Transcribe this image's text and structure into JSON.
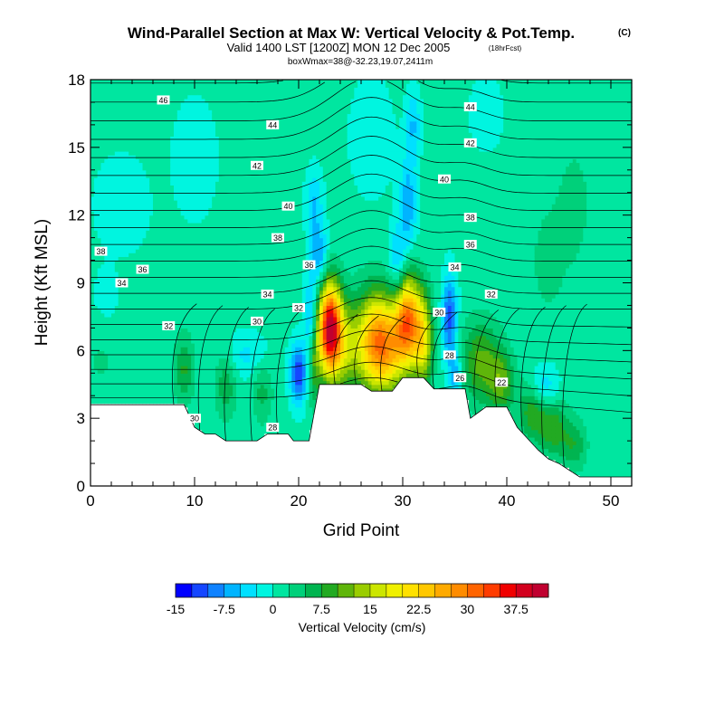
{
  "chart_data": {
    "type": "contour",
    "title": "Wind-Parallel Section at Max W: Vertical Velocity & Pot.Temp.",
    "title_mark": "(C)",
    "subtitle": "Valid 1400 LST [1200Z] MON 12 Dec 2005",
    "subtitle_note": "(18hrFcst)",
    "subtitle2": "boxWmax=38@-32.23,19.07,2411m",
    "xlabel": "Grid Point",
    "ylabel": "Height (Kft MSL)",
    "xlim": [
      0,
      52
    ],
    "ylim": [
      0,
      18
    ],
    "xticks": [
      0,
      10,
      20,
      30,
      40,
      50
    ],
    "yticks": [
      0,
      3,
      6,
      9,
      12,
      15,
      18
    ],
    "terrain": [
      [
        0,
        3.6
      ],
      [
        3,
        3.6
      ],
      [
        5,
        3.6
      ],
      [
        7,
        3.6
      ],
      [
        9,
        3.6
      ],
      [
        10,
        2.6
      ],
      [
        11,
        2.3
      ],
      [
        12,
        2.3
      ],
      [
        13,
        2.0
      ],
      [
        14,
        2.0
      ],
      [
        15,
        2.0
      ],
      [
        16,
        2.0
      ],
      [
        17,
        2.3
      ],
      [
        18,
        2.3
      ],
      [
        19,
        2.3
      ],
      [
        19.5,
        2.0
      ],
      [
        20,
        2.0
      ],
      [
        21,
        2.0
      ],
      [
        22,
        4.5
      ],
      [
        26,
        4.5
      ],
      [
        27,
        4.2
      ],
      [
        29,
        4.2
      ],
      [
        30,
        4.8
      ],
      [
        32,
        4.8
      ],
      [
        33,
        4.3
      ],
      [
        36,
        4.3
      ],
      [
        36.5,
        3.0
      ],
      [
        38,
        3.5
      ],
      [
        40,
        3.5
      ],
      [
        41,
        2.6
      ],
      [
        42,
        2.1
      ],
      [
        43,
        1.6
      ],
      [
        44,
        1.2
      ],
      [
        45,
        1.0
      ],
      [
        46,
        0.7
      ],
      [
        47,
        0.4
      ],
      [
        48,
        0.4
      ],
      [
        52,
        0.4
      ]
    ],
    "colorbar": {
      "levels": [
        -15,
        -12.5,
        -10,
        -7.5,
        -5,
        -2.5,
        0,
        2.5,
        5,
        7.5,
        10,
        12.5,
        15,
        17.5,
        20,
        22.5,
        25,
        27.5,
        30,
        32.5,
        35,
        37.5,
        40,
        42.5
      ],
      "colors": [
        "#0000ff",
        "#1546ff",
        "#0f82ff",
        "#00b4ff",
        "#00e0ff",
        "#00f5e0",
        "#00e6a0",
        "#00d07a",
        "#00b450",
        "#22aa22",
        "#5fb50a",
        "#9acd00",
        "#cce600",
        "#f0f000",
        "#ffe100",
        "#ffc800",
        "#ffaa00",
        "#ff8c00",
        "#ff6400",
        "#ff3c00",
        "#f00000",
        "#d2001e",
        "#c00030"
      ],
      "tick_labels": [
        "-15",
        "-7.5",
        "0",
        "7.5",
        "15",
        "22.5",
        "30",
        "37.5"
      ],
      "label": "Vertical Velocity (cm/s)"
    },
    "theta_contour_labels": [
      {
        "value": "46",
        "x": 7,
        "y": 17.1
      },
      {
        "value": "44",
        "x": 17.5,
        "y": 16.0
      },
      {
        "value": "44",
        "x": 36.5,
        "y": 16.8
      },
      {
        "value": "42",
        "x": 16,
        "y": 14.2
      },
      {
        "value": "42",
        "x": 36.5,
        "y": 15.2
      },
      {
        "value": "40",
        "x": 19,
        "y": 12.4
      },
      {
        "value": "40",
        "x": 34,
        "y": 13.6
      },
      {
        "value": "38",
        "x": 1,
        "y": 10.4
      },
      {
        "value": "38",
        "x": 18,
        "y": 11.0
      },
      {
        "value": "38",
        "x": 36.5,
        "y": 11.9
      },
      {
        "value": "36",
        "x": 5,
        "y": 9.6
      },
      {
        "value": "36",
        "x": 21,
        "y": 9.8
      },
      {
        "value": "36",
        "x": 36.5,
        "y": 10.7
      },
      {
        "value": "34",
        "x": 3,
        "y": 9.0
      },
      {
        "value": "34",
        "x": 17,
        "y": 8.5
      },
      {
        "value": "34",
        "x": 35,
        "y": 9.7
      },
      {
        "value": "32",
        "x": 20,
        "y": 7.9
      },
      {
        "value": "32",
        "x": 7.5,
        "y": 7.1
      },
      {
        "value": "32",
        "x": 38.5,
        "y": 8.5
      },
      {
        "value": "30",
        "x": 16,
        "y": 7.3
      },
      {
        "value": "30",
        "x": 33.5,
        "y": 7.7
      },
      {
        "value": "30",
        "x": 10,
        "y": 3.0
      },
      {
        "value": "28",
        "x": 17.5,
        "y": 2.6
      },
      {
        "value": "28",
        "x": 34.5,
        "y": 5.8
      },
      {
        "value": "26",
        "x": 35.5,
        "y": 4.8
      },
      {
        "value": "22",
        "x": 39.5,
        "y": 4.6
      }
    ],
    "w_features": [
      {
        "x": 23,
        "y": 7.0,
        "sx": 1.1,
        "sy": 2.0,
        "w": 38
      },
      {
        "x": 24.5,
        "y": 6.2,
        "sx": 1.6,
        "sy": 2.0,
        "w": 12
      },
      {
        "x": 27.5,
        "y": 6.4,
        "sx": 1.8,
        "sy": 2.2,
        "w": 26
      },
      {
        "x": 30.5,
        "y": 7.3,
        "sx": 1.2,
        "sy": 2.0,
        "w": 28
      },
      {
        "x": 29,
        "y": 6.0,
        "sx": 1.5,
        "sy": 1.8,
        "w": 10
      },
      {
        "x": 32,
        "y": 6.5,
        "sx": 0.9,
        "sy": 2.0,
        "w": 16
      },
      {
        "x": 37.5,
        "y": 5.5,
        "sx": 1.8,
        "sy": 1.8,
        "w": 10
      },
      {
        "x": 39.5,
        "y": 4.6,
        "sx": 1.2,
        "sy": 1.4,
        "w": 9
      },
      {
        "x": 42.5,
        "y": 3.4,
        "sx": 1.4,
        "sy": 1.3,
        "w": 9
      },
      {
        "x": 44.5,
        "y": 2.6,
        "sx": 1.4,
        "sy": 1.3,
        "w": 8
      },
      {
        "x": 46.5,
        "y": 1.8,
        "sx": 1.2,
        "sy": 1.1,
        "w": 6
      },
      {
        "x": 9,
        "y": 5.2,
        "sx": 0.9,
        "sy": 1.5,
        "w": 7
      },
      {
        "x": 13,
        "y": 4.5,
        "sx": 1.0,
        "sy": 1.5,
        "w": 6
      },
      {
        "x": 16.5,
        "y": 4.2,
        "sx": 1.0,
        "sy": 1.4,
        "w": 5
      },
      {
        "x": 21.5,
        "y": 5.5,
        "sx": 0.6,
        "sy": 2.0,
        "w": 8
      },
      {
        "x": 20,
        "y": 5.0,
        "sx": 0.8,
        "sy": 1.3,
        "w": -13
      },
      {
        "x": 21.2,
        "y": 7.5,
        "sx": 0.6,
        "sy": 1.8,
        "w": -9
      },
      {
        "x": 22.0,
        "y": 10.2,
        "sx": 0.8,
        "sy": 1.3,
        "w": -8
      },
      {
        "x": 21.5,
        "y": 12.5,
        "sx": 0.8,
        "sy": 1.5,
        "w": -6
      },
      {
        "x": 29.5,
        "y": 10.0,
        "sx": 0.8,
        "sy": 1.5,
        "w": -7
      },
      {
        "x": 30.5,
        "y": 12.5,
        "sx": 0.8,
        "sy": 2.0,
        "w": -8
      },
      {
        "x": 31,
        "y": 16.0,
        "sx": 0.7,
        "sy": 1.5,
        "w": -6
      },
      {
        "x": 34.5,
        "y": 7.5,
        "sx": 0.7,
        "sy": 1.8,
        "w": -12
      },
      {
        "x": 35.0,
        "y": 5.0,
        "sx": 0.6,
        "sy": 1.0,
        "w": -8
      },
      {
        "x": 43.5,
        "y": 4.3,
        "sx": 1.4,
        "sy": 1.0,
        "w": -7
      },
      {
        "x": 15,
        "y": 5.8,
        "sx": 2.0,
        "sy": 1.0,
        "w": -4
      },
      {
        "x": 3,
        "y": 12.5,
        "sx": 2.5,
        "sy": 2.0,
        "w": -3
      },
      {
        "x": 10,
        "y": 14.5,
        "sx": 2.0,
        "sy": 2.5,
        "w": -3
      },
      {
        "x": 27,
        "y": 15.5,
        "sx": 2.0,
        "sy": 2.5,
        "w": -3
      },
      {
        "x": 44,
        "y": 10.0,
        "sx": 2.0,
        "sy": 3.0,
        "w": 2.5
      },
      {
        "x": 46.5,
        "y": 12.5,
        "sx": 1.5,
        "sy": 2.5,
        "w": 3
      },
      {
        "x": 1,
        "y": 5.5,
        "sx": 1.5,
        "sy": 1.5,
        "w": 2
      },
      {
        "x": 38,
        "y": 16.5,
        "sx": 1.5,
        "sy": 1.5,
        "w": -3
      },
      {
        "x": 1.5,
        "y": 8.5,
        "sx": 1.2,
        "sy": 1.2,
        "w": -2
      }
    ]
  }
}
